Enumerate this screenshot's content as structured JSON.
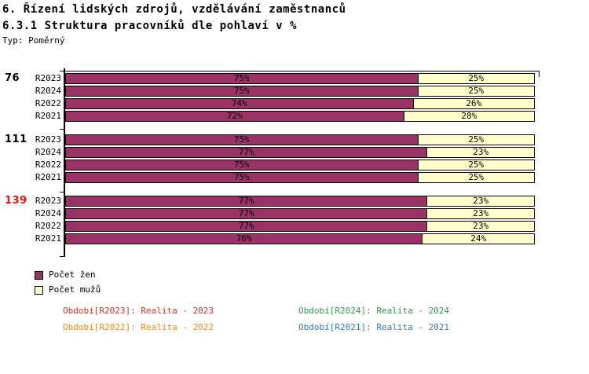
{
  "title": "6. Řízení lidských zdrojů, vzdělávání zaměstnanců",
  "subtitle": "6.3.1 Struktura pracovníků dle pohlaví v %",
  "type_label": "Typ: Poměrný",
  "chart_data": {
    "type": "bar",
    "orientation": "horizontal",
    "stacked": true,
    "unit": "%",
    "xlim": [
      0,
      100
    ],
    "series_names": [
      "Počet žen",
      "Počet mužů"
    ],
    "colors": {
      "women": "#993366",
      "men": "#FFFFCC",
      "border": "#000000"
    },
    "groups": [
      {
        "total": "76",
        "total_color": "#000000",
        "rows": [
          {
            "label": "R2023",
            "women": 75,
            "men": 25
          },
          {
            "label": "R2024",
            "women": 75,
            "men": 25
          },
          {
            "label": "R2022",
            "women": 74,
            "men": 26
          },
          {
            "label": "R2021",
            "women": 72,
            "men": 28
          }
        ]
      },
      {
        "total": "111",
        "total_color": "#000000",
        "rows": [
          {
            "label": "R2023",
            "women": 75,
            "men": 25
          },
          {
            "label": "R2024",
            "women": 77,
            "men": 23
          },
          {
            "label": "R2022",
            "women": 75,
            "men": 25
          },
          {
            "label": "R2021",
            "women": 75,
            "men": 25
          }
        ]
      },
      {
        "total": "139",
        "total_color": "#EE1111",
        "rows": [
          {
            "label": "R2023",
            "women": 77,
            "men": 23
          },
          {
            "label": "R2024",
            "women": 77,
            "men": 23
          },
          {
            "label": "R2022",
            "women": 77,
            "men": 23
          },
          {
            "label": "R2021",
            "women": 76,
            "men": 24
          }
        ]
      }
    ]
  },
  "legend": [
    {
      "label": "Počet žen",
      "color": "#993366"
    },
    {
      "label": "Počet mužů",
      "color": "#FFFFCC"
    }
  ],
  "footer": [
    {
      "label": "Období[R2023]: Realita - 2023",
      "color": "#CC3322"
    },
    {
      "label": "Období[R2024]: Realita - 2024",
      "color": "#339944"
    },
    {
      "label": "Období[R2022]: Realita - 2022",
      "color": "#EE8811"
    },
    {
      "label": "Období[R2021]: Realita - 2021",
      "color": "#3377BB"
    }
  ]
}
